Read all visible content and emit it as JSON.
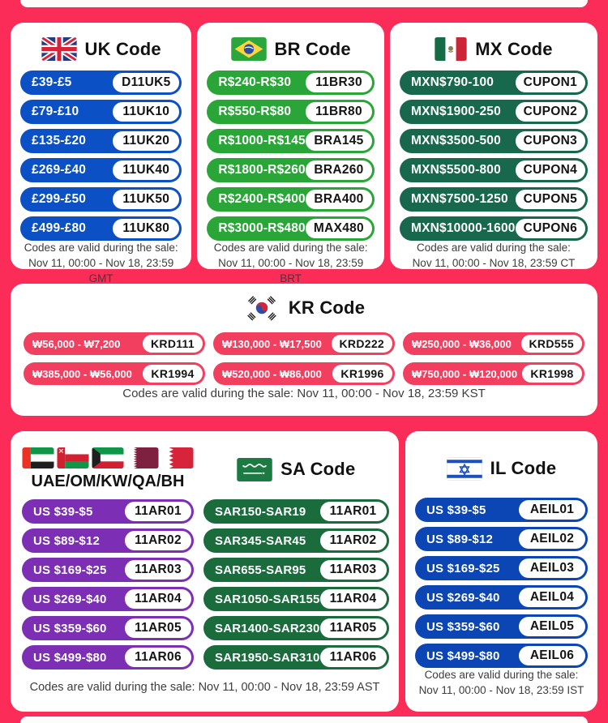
{
  "page": {
    "background_color": "#FB2C57",
    "card_color": "#FFFFFF",
    "footer_text_color": "#3D3D3D"
  },
  "cards": {
    "uk": {
      "title": "UK Code",
      "flag_icon": "uk-flag",
      "pill_color": "#0B51C5",
      "rows": [
        {
          "label": "£39-£5",
          "code": "D11UK5"
        },
        {
          "label": "£79-£10",
          "code": "11UK10"
        },
        {
          "label": "£135-£20",
          "code": "11UK20"
        },
        {
          "label": "£269-£40",
          "code": "11UK40"
        },
        {
          "label": "£299-£50",
          "code": "11UK50"
        },
        {
          "label": "£499-£80",
          "code": "11UK80"
        }
      ],
      "footer1": "Codes are valid during the sale:",
      "footer2": "Nov 11, 00:00 - Nov 18, 23:59 GMT"
    },
    "br": {
      "title": "BR Code",
      "flag_icon": "brazil-flag",
      "pill_color": "#29A637",
      "rows": [
        {
          "label": "R$240-R$30",
          "code": "11BR30"
        },
        {
          "label": "R$550-R$80",
          "code": "11BR80"
        },
        {
          "label": "R$1000-R$145",
          "code": "BRA145"
        },
        {
          "label": "R$1800-R$260",
          "code": "BRA260"
        },
        {
          "label": "R$2400-R$400",
          "code": "BRA400"
        },
        {
          "label": "R$3000-R$480",
          "code": "MAX480"
        }
      ],
      "footer1": "Codes are valid during the sale:",
      "footer2": "Nov 11, 00:00 - Nov 18, 23:59 BRT"
    },
    "mx": {
      "title": "MX Code",
      "flag_icon": "mexico-flag",
      "pill_color": "#18684D",
      "rows": [
        {
          "label": "MXN$790-100",
          "code": "CUPON1"
        },
        {
          "label": "MXN$1900-250",
          "code": "CUPON2"
        },
        {
          "label": "MXN$3500-500",
          "code": "CUPON3"
        },
        {
          "label": "MXN$5500-800",
          "code": "CUPON4"
        },
        {
          "label": "MXN$7500-1250",
          "code": "CUPON5"
        },
        {
          "label": "MXN$10000-1600",
          "code": "CUPON6"
        }
      ],
      "footer1": "Codes are valid during the sale:",
      "footer2": "Nov 11, 00:00 - Nov 18, 23:59 CT"
    },
    "kr": {
      "title": "KR Code",
      "flag_icon": "south-korea-flag",
      "pill_color": "#F23F60",
      "rows": [
        {
          "label": "₩56,000 - ₩7,200",
          "code": "KRD111"
        },
        {
          "label": "₩130,000 - ₩17,500",
          "code": "KRD222"
        },
        {
          "label": "₩250,000 - ₩36,000",
          "code": "KRD555"
        },
        {
          "label": "₩385,000 - ₩56,000",
          "code": "KR1994"
        },
        {
          "label": "₩520,000 - ₩86,000",
          "code": "KR1996"
        },
        {
          "label": "₩750,000 - ₩120,000",
          "code": "KR1998"
        }
      ],
      "footer": "Codes are valid during the sale: Nov 11, 00:00 - Nov 18, 23:59 KST"
    },
    "gulf": {
      "title": "UAE/OM/KW/QA/BH",
      "flag_icons": [
        "uae-flag",
        "oman-flag",
        "kuwait-flag",
        "qatar-flag",
        "bahrain-flag"
      ],
      "pill_color": "#7C2FB5",
      "rows": [
        {
          "label": "US $39-$5",
          "code": "11AR01"
        },
        {
          "label": "US $89-$12",
          "code": "11AR02"
        },
        {
          "label": "US $169-$25",
          "code": "11AR03"
        },
        {
          "label": "US $269-$40",
          "code": "11AR04"
        },
        {
          "label": "US $359-$60",
          "code": "11AR05"
        },
        {
          "label": "US $499-$80",
          "code": "11AR06"
        }
      ]
    },
    "sa": {
      "title": "SA Code",
      "flag_icon": "saudi-arabia-flag",
      "pill_color": "#1B6C3C",
      "rows": [
        {
          "label": "SAR150-SAR19",
          "code": "11AR01"
        },
        {
          "label": "SAR345-SAR45",
          "code": "11AR02"
        },
        {
          "label": "SAR655-SAR95",
          "code": "11AR03"
        },
        {
          "label": "SAR1050-SAR155",
          "code": "11AR04"
        },
        {
          "label": "SAR1400-SAR230",
          "code": "11AR05"
        },
        {
          "label": "SAR1950-SAR310",
          "code": "11AR06"
        }
      ]
    },
    "gulf_sa_footer": "Codes are valid during the sale: Nov 11, 00:00 - Nov 18, 23:59 AST",
    "il": {
      "title": "IL Code",
      "flag_icon": "israel-flag",
      "pill_color": "#0C46B4",
      "rows": [
        {
          "label": "US $39-$5",
          "code": "AEIL01"
        },
        {
          "label": "US $89-$12",
          "code": "AEIL02"
        },
        {
          "label": "US $169-$25",
          "code": "AEIL03"
        },
        {
          "label": "US $269-$40",
          "code": "AEIL04"
        },
        {
          "label": "US $359-$60",
          "code": "AEIL05"
        },
        {
          "label": "US $499-$80",
          "code": "AEIL06"
        }
      ],
      "footer1": "Codes are valid during the sale:",
      "footer2": "Nov 11, 00:00 - Nov 18, 23:59 IST"
    }
  }
}
